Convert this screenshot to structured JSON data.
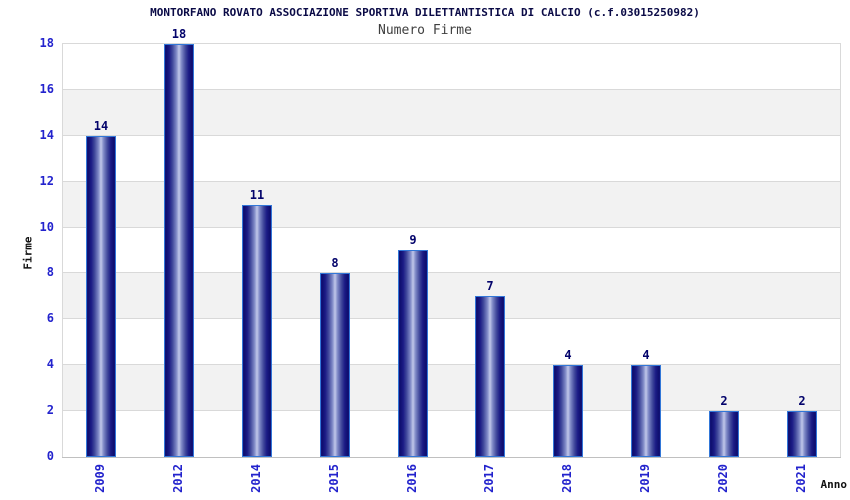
{
  "chart_data": {
    "type": "bar",
    "title": "MONTORFANO ROVATO ASSOCIAZIONE SPORTIVA DILETTANTISTICA DI CALCIO (c.f.03015250982)",
    "subtitle": "Numero Firme",
    "xlabel": "Anno",
    "ylabel": "Firme",
    "categories": [
      "2009",
      "2012",
      "2014",
      "2015",
      "2016",
      "2017",
      "2018",
      "2019",
      "2020",
      "2021"
    ],
    "values": [
      14,
      18,
      11,
      8,
      9,
      7,
      4,
      4,
      2,
      2
    ],
    "ylim": [
      0,
      18
    ],
    "ytick_step": 2,
    "grid": true,
    "legend_position": "none",
    "bands_alternating": true,
    "colors": {
      "bar_dark": "#0f0f70",
      "bar_highlight": "#c2c9ea",
      "bar_border": "#3277d8",
      "tick_text": "#2323cd",
      "value_label_text": "#03036b",
      "title_text": "#0a0a46",
      "subtitle_text": "#3f3f3f",
      "axis_title_text": "#111111",
      "band_gray": "#f2f2f2",
      "band_white": "#ffffff",
      "grid_line": "#d9d9d9",
      "background": "#ffffff"
    }
  }
}
